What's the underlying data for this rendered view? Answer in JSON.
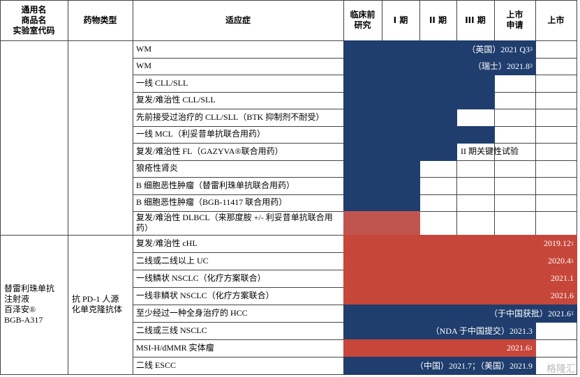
{
  "header": {
    "name_col": [
      "通用名",
      "商品名",
      "实验室代码"
    ],
    "type_col": "药物类型",
    "indication_col": "适应症",
    "stages": [
      [
        "临床前",
        "研究"
      ],
      [
        "I 期"
      ],
      [
        "II 期"
      ],
      [
        "III 期"
      ],
      [
        "上市",
        "申请"
      ],
      [
        "上市"
      ]
    ]
  },
  "sections": [
    {
      "rows": [
        {
          "indication": "WM",
          "bar_label": "（英国）2021 Q3",
          "note": "3"
        },
        {
          "indication": "WM",
          "bar_label": "（瑞士）2021.8",
          "note": "3"
        },
        {
          "indication": "一线 CLL/SLL"
        },
        {
          "indication": "复发/难治性 CLL/SLL"
        },
        {
          "indication": "先前接受过治疗的 CLL/SLL（BTK 抑制剂不耐受）"
        },
        {
          "indication": "一线 MCL（利妥昔单抗联合用药）"
        },
        {
          "indication": "复发/难治性 FL（GAZYVA®联合用药）",
          "status": "II 期关键性试验"
        },
        {
          "indication": "狼疮性肾炎"
        },
        {
          "indication": "B 细胞恶性肿瘤（替雷利珠单抗联合用药）"
        },
        {
          "indication": "B 细胞恶性肿瘤（BGB-11417 联合用药）"
        },
        {
          "indication": "复发/难治性 DLBCL（来那度胺 +/- 利妥昔单抗联合用药）"
        }
      ]
    },
    {
      "drug": [
        "替雷利珠单抗",
        "注射液",
        "百泽安®",
        "BGB-A317"
      ],
      "drug_type": [
        "抗 PD-1 人源",
        "化单克隆抗体"
      ],
      "rows": [
        {
          "indication": "复发/难治性 cHL",
          "bar_label": "2019.12",
          "note": "1"
        },
        {
          "indication": "二线或二线以上 UC",
          "bar_label": "2020.4",
          "note": "1"
        },
        {
          "indication": "一线鳞状 NSCLC（化疗方案联合）",
          "bar_label": "2021.1"
        },
        {
          "indication": "一线非鳞状 NSCLC（化疗方案联合）",
          "bar_label": "2021.6"
        },
        {
          "indication": "至少经过一种全身治疗的 HCC",
          "bar_label": "（于中国获批）2021.6",
          "note": "1"
        },
        {
          "indication": "二线或三线 NSCLC",
          "bar_label": "（NDA 于中国提交）2021.3"
        },
        {
          "indication": "MSI-H/dMMR 实体瘤",
          "bar_label": "2021.6",
          "note": "1"
        },
        {
          "indication": "二线 ESCC",
          "bar_label": "（中国）2021.7；（美国）2021.9"
        }
      ]
    }
  ],
  "watermark": "格隆汇"
}
